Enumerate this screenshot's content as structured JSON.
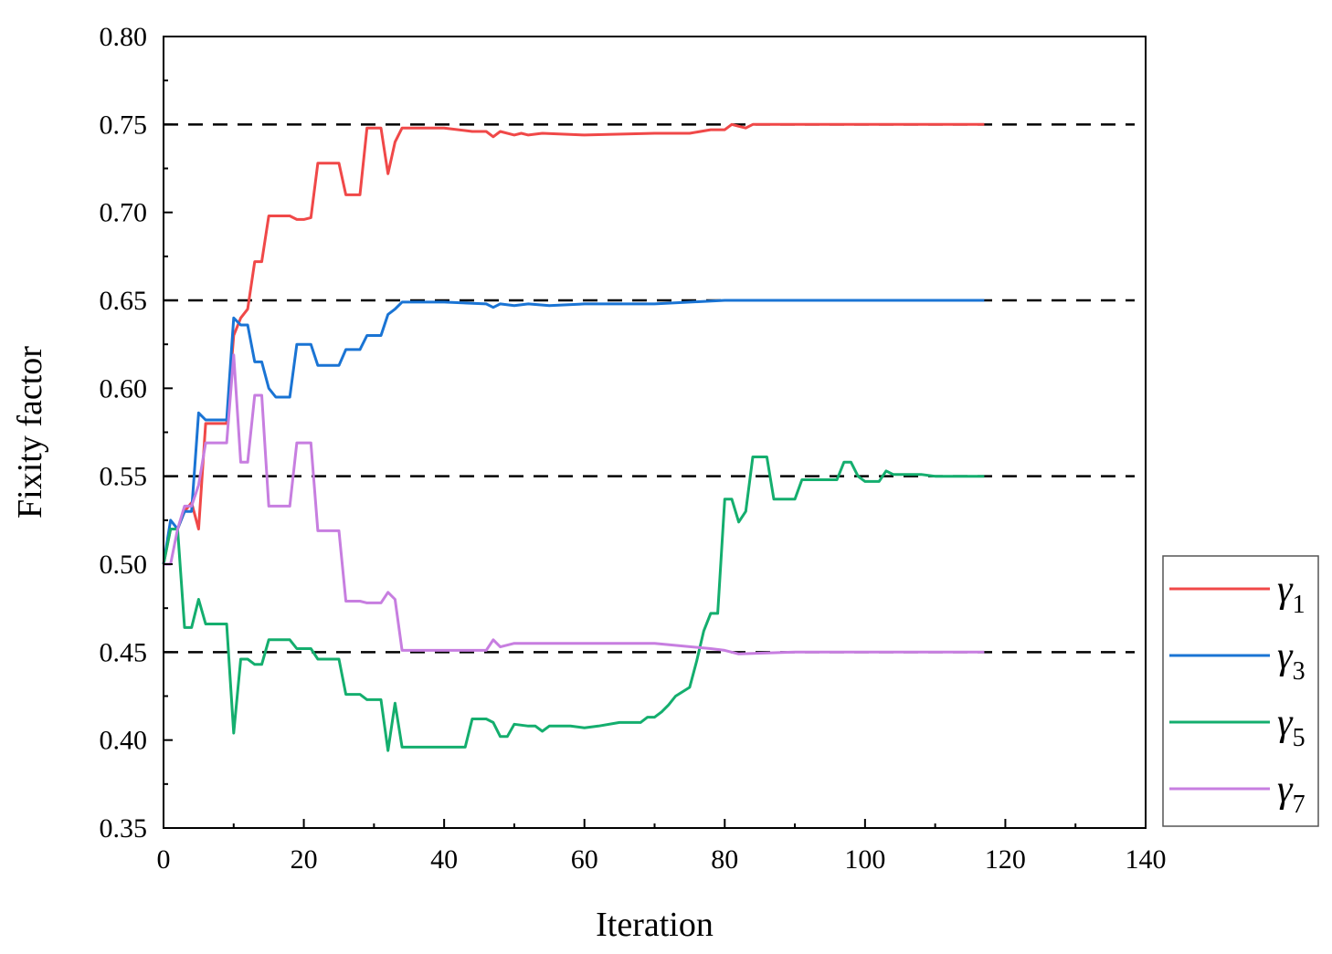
{
  "chart_data": {
    "type": "line",
    "title": "",
    "xlabel": "Iteration",
    "ylabel": "Fixity factor",
    "xlim": [
      0,
      140
    ],
    "ylim": [
      0.35,
      0.8
    ],
    "x_ticks": [
      0,
      20,
      40,
      60,
      80,
      100,
      120,
      140
    ],
    "x_tick_labels": [
      "0",
      "20",
      "40",
      "60",
      "80",
      "100",
      "120",
      "140"
    ],
    "y_ticks": [
      0.35,
      0.4,
      0.45,
      0.5,
      0.55,
      0.6,
      0.65,
      0.7,
      0.75,
      0.8
    ],
    "y_tick_labels": [
      "0.35",
      "0.40",
      "0.45",
      "0.50",
      "0.55",
      "0.60",
      "0.65",
      "0.70",
      "0.75",
      "0.80"
    ],
    "reference_lines": [
      0.45,
      0.55,
      0.65,
      0.75
    ],
    "reference_line_style": "dashed black",
    "grid": false,
    "legend_position": "right",
    "series": [
      {
        "name": "γ1",
        "symbol": "γ",
        "subscript": "1",
        "color": "#f04848",
        "x": [
          0,
          1,
          2,
          3,
          4,
          5,
          6,
          7,
          8,
          9,
          10,
          11,
          12,
          13,
          14,
          15,
          16,
          17,
          18,
          19,
          20,
          21,
          22,
          23,
          24,
          25,
          26,
          27,
          28,
          29,
          30,
          31,
          32,
          33,
          34,
          35,
          38,
          40,
          44,
          46,
          47,
          48,
          50,
          51,
          52,
          54,
          60,
          70,
          75,
          78,
          80,
          81,
          82,
          83,
          84,
          90,
          100,
          110,
          117
        ],
        "y": [
          0.5,
          0.52,
          0.52,
          0.53,
          0.535,
          0.52,
          0.58,
          0.58,
          0.58,
          0.58,
          0.63,
          0.64,
          0.645,
          0.672,
          0.672,
          0.698,
          0.698,
          0.698,
          0.698,
          0.696,
          0.696,
          0.697,
          0.728,
          0.728,
          0.728,
          0.728,
          0.71,
          0.71,
          0.71,
          0.748,
          0.748,
          0.748,
          0.722,
          0.74,
          0.748,
          0.748,
          0.748,
          0.748,
          0.746,
          0.746,
          0.743,
          0.746,
          0.744,
          0.745,
          0.744,
          0.745,
          0.744,
          0.745,
          0.745,
          0.747,
          0.747,
          0.75,
          0.749,
          0.748,
          0.75,
          0.75,
          0.75,
          0.75,
          0.75
        ]
      },
      {
        "name": "γ3",
        "symbol": "γ",
        "subscript": "3",
        "color": "#1a74d4",
        "x": [
          0,
          1,
          2,
          3,
          4,
          5,
          6,
          7,
          8,
          9,
          10,
          11,
          12,
          13,
          14,
          15,
          16,
          17,
          18,
          19,
          20,
          21,
          22,
          23,
          24,
          25,
          26,
          27,
          28,
          29,
          30,
          31,
          32,
          33,
          34,
          35,
          40,
          46,
          47,
          48,
          50,
          52,
          55,
          60,
          70,
          80,
          90,
          100,
          117
        ],
        "y": [
          0.5,
          0.525,
          0.52,
          0.53,
          0.53,
          0.586,
          0.582,
          0.582,
          0.582,
          0.582,
          0.64,
          0.636,
          0.636,
          0.615,
          0.615,
          0.6,
          0.595,
          0.595,
          0.595,
          0.625,
          0.625,
          0.625,
          0.613,
          0.613,
          0.613,
          0.613,
          0.622,
          0.622,
          0.622,
          0.63,
          0.63,
          0.63,
          0.642,
          0.645,
          0.649,
          0.649,
          0.649,
          0.648,
          0.646,
          0.648,
          0.647,
          0.648,
          0.647,
          0.648,
          0.648,
          0.65,
          0.65,
          0.65,
          0.65
        ]
      },
      {
        "name": "γ5",
        "symbol": "γ",
        "subscript": "5",
        "color": "#14ae6e",
        "x": [
          0,
          1,
          2,
          3,
          4,
          5,
          6,
          7,
          8,
          9,
          10,
          11,
          12,
          13,
          14,
          15,
          16,
          17,
          18,
          19,
          20,
          21,
          22,
          23,
          24,
          25,
          26,
          27,
          28,
          29,
          30,
          31,
          32,
          33,
          34,
          35,
          40,
          43,
          44,
          46,
          47,
          48,
          49,
          50,
          52,
          53,
          54,
          55,
          58,
          60,
          62,
          65,
          68,
          69,
          70,
          71,
          72,
          73,
          75,
          76,
          77,
          78,
          79,
          80,
          81,
          82,
          83,
          84,
          85,
          86,
          87,
          90,
          91,
          95,
          96,
          97,
          98,
          99,
          100,
          102,
          103,
          104,
          108,
          110,
          117
        ],
        "y": [
          0.5,
          0.52,
          0.52,
          0.464,
          0.464,
          0.48,
          0.466,
          0.466,
          0.466,
          0.466,
          0.404,
          0.446,
          0.446,
          0.443,
          0.443,
          0.457,
          0.457,
          0.457,
          0.457,
          0.452,
          0.452,
          0.452,
          0.446,
          0.446,
          0.446,
          0.446,
          0.426,
          0.426,
          0.426,
          0.423,
          0.423,
          0.423,
          0.394,
          0.421,
          0.396,
          0.396,
          0.396,
          0.396,
          0.412,
          0.412,
          0.41,
          0.402,
          0.402,
          0.409,
          0.408,
          0.408,
          0.405,
          0.408,
          0.408,
          0.407,
          0.408,
          0.41,
          0.41,
          0.413,
          0.413,
          0.416,
          0.42,
          0.425,
          0.43,
          0.445,
          0.462,
          0.472,
          0.472,
          0.537,
          0.537,
          0.524,
          0.53,
          0.561,
          0.561,
          0.561,
          0.537,
          0.537,
          0.548,
          0.548,
          0.548,
          0.558,
          0.558,
          0.55,
          0.547,
          0.547,
          0.553,
          0.551,
          0.551,
          0.55,
          0.55
        ]
      },
      {
        "name": "γ7",
        "symbol": "γ",
        "subscript": "7",
        "color": "#c77ee0",
        "x": [
          0,
          1,
          2,
          3,
          4,
          5,
          6,
          7,
          8,
          9,
          10,
          11,
          12,
          13,
          14,
          15,
          16,
          17,
          18,
          19,
          20,
          21,
          22,
          23,
          24,
          25,
          26,
          27,
          28,
          29,
          30,
          31,
          32,
          33,
          34,
          35,
          40,
          46,
          47,
          48,
          50,
          52,
          55,
          60,
          70,
          78,
          80,
          82,
          90,
          100,
          117
        ],
        "y": [
          0.5,
          0.5,
          0.52,
          0.533,
          0.533,
          0.545,
          0.569,
          0.569,
          0.569,
          0.569,
          0.619,
          0.558,
          0.558,
          0.596,
          0.596,
          0.533,
          0.533,
          0.533,
          0.533,
          0.569,
          0.569,
          0.569,
          0.519,
          0.519,
          0.519,
          0.519,
          0.479,
          0.479,
          0.479,
          0.478,
          0.478,
          0.478,
          0.484,
          0.48,
          0.451,
          0.451,
          0.451,
          0.451,
          0.457,
          0.453,
          0.455,
          0.455,
          0.455,
          0.455,
          0.455,
          0.452,
          0.451,
          0.449,
          0.45,
          0.45,
          0.45
        ]
      }
    ]
  }
}
